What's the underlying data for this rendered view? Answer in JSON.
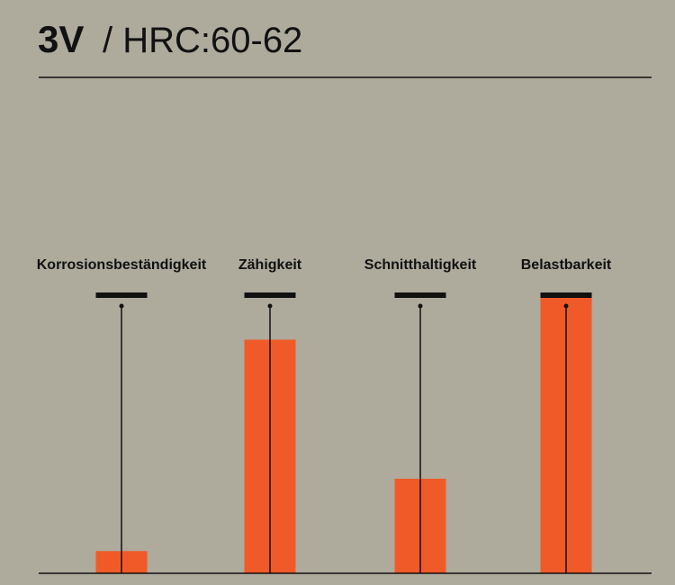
{
  "chart_data": {
    "type": "bar",
    "title": "3V",
    "subtitle": "/ HRC:60-62",
    "categories": [
      "Korrosionsbeständigkeit",
      "Zähigkeit",
      "Schnitthaltigkeit",
      "Belastbarkeit"
    ],
    "values": [
      8,
      84,
      34,
      100
    ],
    "color": "#f05a28",
    "ylim": [
      0,
      100
    ]
  }
}
